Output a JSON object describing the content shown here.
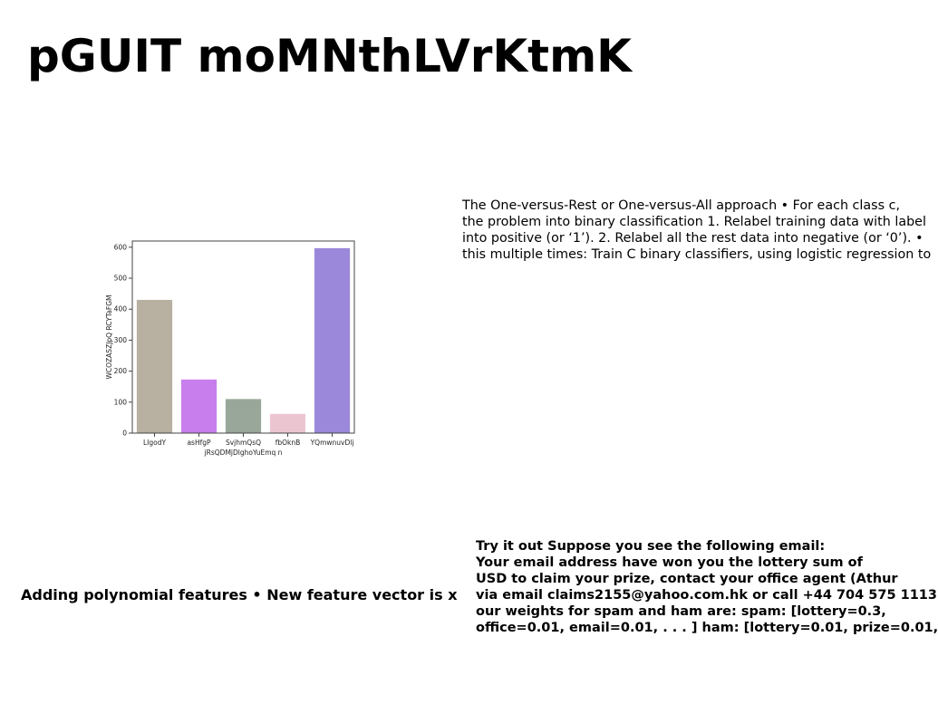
{
  "slide": {
    "title": "pGUIT moMNthLVrKtmK",
    "description_lines": [
      "The One-versus-Rest or One-versus-All approach • For each class c,",
      "the problem into binary classification 1. Relabel training data with label",
      "into positive (or ‘1’). 2. Relabel all the rest data into negative (or ‘0’). •",
      "this multiple times: Train C binary classifiers, using logistic regression to"
    ],
    "polynomial_text": "Adding polynomial features • New feature vector is x",
    "email_lines": [
      "Try it out Suppose you see the following email:",
      "Your email address have won you the lottery sum of",
      "USD to claim your prize, contact your office agent (Athur",
      "via email claims2155@yahoo.com.hk or call +44 704 575 1113",
      "our weights for spam and ham are: spam: [lottery=0.3,",
      "office=0.01, email=0.01, . . . ] ham: [lottery=0.01, prize=0.01,"
    ]
  },
  "chart_data": {
    "type": "bar",
    "categories": [
      "LIgodY",
      "asHfgP",
      "SvjhmQsQ",
      "fbOknB",
      "YQmwnuvDlj"
    ],
    "values": [
      430,
      173,
      110,
      62,
      597
    ],
    "colors": [
      "#b8b0a0",
      "#c87eec",
      "#98a799",
      "#ebc6d1",
      "#9b88da"
    ],
    "xlabel": "jRsQDMjDlghoYuEmq n",
    "ylabel": "WCOZASZJpQ RCYTaFGM",
    "ylim": [
      0,
      620
    ],
    "yticks": [
      0,
      100,
      200,
      300,
      400,
      500,
      600
    ],
    "grid": false
  }
}
